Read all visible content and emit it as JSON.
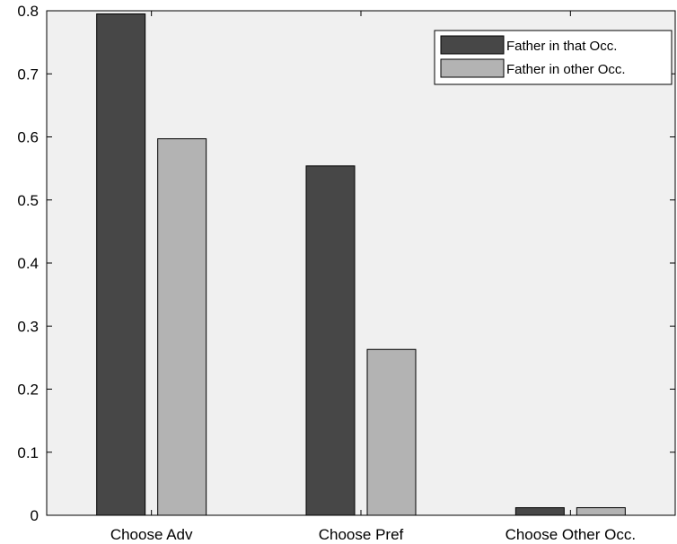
{
  "chart_data": {
    "type": "bar",
    "categories": [
      "Choose Adv",
      "Choose Pref",
      "Choose Other Occ."
    ],
    "series": [
      {
        "name": "Father in that Occ.",
        "values": [
          0.795,
          0.554,
          0.012
        ],
        "color": "#474747"
      },
      {
        "name": "Father in other Occ.",
        "values": [
          0.597,
          0.263,
          0.012
        ],
        "color": "#b3b3b3"
      }
    ],
    "y_ticks": [
      "0",
      "0.1",
      "0.2",
      "0.3",
      "0.4",
      "0.5",
      "0.6",
      "0.7",
      "0.8"
    ],
    "ylim": [
      0,
      0.8
    ],
    "grid": false,
    "legend_position": "top-right",
    "plot_background": "#f0f0f0"
  }
}
